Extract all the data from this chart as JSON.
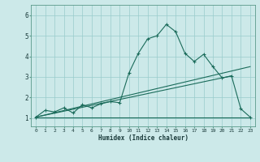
{
  "title": "",
  "xlabel": "Humidex (Indice chaleur)",
  "ylabel": "",
  "bg_color": "#cce9e9",
  "line_color": "#1a6b5a",
  "grid_color": "#99cccc",
  "xticks": [
    0,
    1,
    2,
    3,
    4,
    5,
    6,
    7,
    8,
    9,
    10,
    11,
    12,
    13,
    14,
    15,
    16,
    17,
    18,
    19,
    20,
    21,
    22,
    23
  ],
  "yticks": [
    1,
    2,
    3,
    4,
    5,
    6
  ],
  "ylim": [
    0.6,
    6.5
  ],
  "xlim": [
    -0.5,
    23.5
  ],
  "main_x": [
    0,
    1,
    2,
    3,
    4,
    5,
    6,
    7,
    8,
    9,
    10,
    11,
    12,
    13,
    14,
    15,
    16,
    17,
    18,
    19,
    20,
    21,
    22,
    23
  ],
  "main_y": [
    1.05,
    1.38,
    1.3,
    1.5,
    1.25,
    1.65,
    1.5,
    1.7,
    1.8,
    1.75,
    3.2,
    4.15,
    4.85,
    5.0,
    5.55,
    5.2,
    4.15,
    3.75,
    4.1,
    3.5,
    2.95,
    3.05,
    1.45,
    1.05
  ],
  "line1_x": [
    0,
    23
  ],
  "line1_y": [
    1.05,
    3.5
  ],
  "line2_x": [
    0,
    21
  ],
  "line2_y": [
    1.05,
    3.05
  ],
  "line3_x": [
    0,
    23
  ],
  "line3_y": [
    1.05,
    1.05
  ]
}
